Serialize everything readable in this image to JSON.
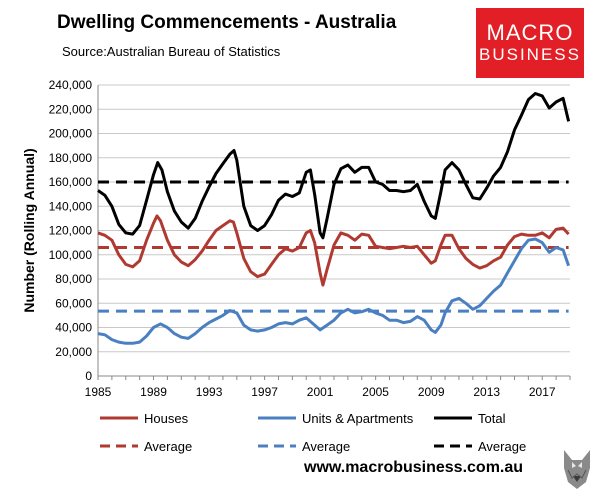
{
  "header": {
    "title": "Dwelling Commencements - Australia",
    "source": "Source:Australian Bureau of Statistics"
  },
  "logo": {
    "line1": "MACRO",
    "line2": "BUSINESS"
  },
  "footer": {
    "website": "www.macrobusiness.com.au"
  },
  "colors": {
    "houses": "#b03a32",
    "units": "#4a7fc1",
    "total": "#000000",
    "grid": "#c8c8c8",
    "logo_bg": "#e21f26"
  },
  "chart_data": {
    "type": "line",
    "title": "Dwelling Commencements - Australia",
    "xlabel": "",
    "ylabel": "Number (Rolling Annual)",
    "xlim": [
      1985,
      2019
    ],
    "ylim": [
      0,
      240000
    ],
    "grid": true,
    "x_ticks": [
      "1985",
      "1989",
      "1993",
      "1997",
      "2001",
      "2005",
      "2009",
      "2013",
      "2017"
    ],
    "y_ticks": [
      "0",
      "20,000",
      "40,000",
      "60,000",
      "80,000",
      "100,000",
      "120,000",
      "140,000",
      "160,000",
      "180,000",
      "200,000",
      "220,000",
      "240,000"
    ],
    "series": [
      {
        "name": "Houses",
        "key": "houses",
        "style": "solid",
        "points": [
          [
            1985,
            118000
          ],
          [
            1985.5,
            116000
          ],
          [
            1986,
            112000
          ],
          [
            1986.5,
            100000
          ],
          [
            1987,
            92000
          ],
          [
            1987.5,
            90000
          ],
          [
            1988,
            95000
          ],
          [
            1988.5,
            112000
          ],
          [
            1989,
            126000
          ],
          [
            1989.25,
            132000
          ],
          [
            1989.5,
            128000
          ],
          [
            1990,
            112000
          ],
          [
            1990.5,
            100000
          ],
          [
            1991,
            94000
          ],
          [
            1991.5,
            91000
          ],
          [
            1992,
            96000
          ],
          [
            1992.5,
            103000
          ],
          [
            1993,
            112000
          ],
          [
            1993.5,
            120000
          ],
          [
            1994,
            124000
          ],
          [
            1994.5,
            128000
          ],
          [
            1994.75,
            127000
          ],
          [
            1995,
            118000
          ],
          [
            1995.5,
            97000
          ],
          [
            1996,
            86000
          ],
          [
            1996.5,
            82000
          ],
          [
            1997,
            84000
          ],
          [
            1997.5,
            92000
          ],
          [
            1998,
            100000
          ],
          [
            1998.5,
            105000
          ],
          [
            1999,
            103000
          ],
          [
            1999.5,
            106000
          ],
          [
            2000,
            118000
          ],
          [
            2000.3,
            120000
          ],
          [
            2000.6,
            110000
          ],
          [
            2001,
            85000
          ],
          [
            2001.2,
            75000
          ],
          [
            2001.5,
            88000
          ],
          [
            2002,
            108000
          ],
          [
            2002.5,
            118000
          ],
          [
            2003,
            116000
          ],
          [
            2003.5,
            112000
          ],
          [
            2004,
            117000
          ],
          [
            2004.5,
            116000
          ],
          [
            2005,
            107000
          ],
          [
            2005.5,
            106000
          ],
          [
            2006,
            105000
          ],
          [
            2006.5,
            106000
          ],
          [
            2007,
            107000
          ],
          [
            2007.5,
            106000
          ],
          [
            2008,
            107000
          ],
          [
            2008.5,
            100000
          ],
          [
            2009,
            93000
          ],
          [
            2009.3,
            95000
          ],
          [
            2009.7,
            108000
          ],
          [
            2010,
            116000
          ],
          [
            2010.5,
            116000
          ],
          [
            2011,
            105000
          ],
          [
            2011.5,
            97000
          ],
          [
            2012,
            92000
          ],
          [
            2012.5,
            89000
          ],
          [
            2013,
            91000
          ],
          [
            2013.5,
            95000
          ],
          [
            2014,
            98000
          ],
          [
            2014.5,
            108000
          ],
          [
            2015,
            115000
          ],
          [
            2015.5,
            117000
          ],
          [
            2016,
            116000
          ],
          [
            2016.5,
            116000
          ],
          [
            2017,
            118000
          ],
          [
            2017.5,
            114000
          ],
          [
            2018,
            121000
          ],
          [
            2018.5,
            122000
          ],
          [
            2018.9,
            117000
          ]
        ]
      },
      {
        "name": "Units & Apartments",
        "key": "units",
        "style": "solid",
        "points": [
          [
            1985,
            35000
          ],
          [
            1985.5,
            34000
          ],
          [
            1986,
            30000
          ],
          [
            1986.5,
            28000
          ],
          [
            1987,
            27000
          ],
          [
            1987.5,
            27000
          ],
          [
            1988,
            28000
          ],
          [
            1988.5,
            33000
          ],
          [
            1989,
            40000
          ],
          [
            1989.5,
            43000
          ],
          [
            1990,
            40000
          ],
          [
            1990.5,
            35000
          ],
          [
            1991,
            32000
          ],
          [
            1991.5,
            31000
          ],
          [
            1992,
            35000
          ],
          [
            1992.5,
            40000
          ],
          [
            1993,
            44000
          ],
          [
            1993.5,
            47000
          ],
          [
            1994,
            50000
          ],
          [
            1994.5,
            54000
          ],
          [
            1995,
            52000
          ],
          [
            1995.5,
            42000
          ],
          [
            1996,
            38000
          ],
          [
            1996.5,
            37000
          ],
          [
            1997,
            38000
          ],
          [
            1997.5,
            40000
          ],
          [
            1998,
            43000
          ],
          [
            1998.5,
            44000
          ],
          [
            1999,
            43000
          ],
          [
            1999.5,
            46000
          ],
          [
            2000,
            48000
          ],
          [
            2000.5,
            43000
          ],
          [
            2001,
            38000
          ],
          [
            2001.5,
            42000
          ],
          [
            2002,
            46000
          ],
          [
            2002.5,
            52000
          ],
          [
            2003,
            55000
          ],
          [
            2003.5,
            52000
          ],
          [
            2004,
            53000
          ],
          [
            2004.5,
            55000
          ],
          [
            2005,
            52000
          ],
          [
            2005.5,
            50000
          ],
          [
            2006,
            46000
          ],
          [
            2006.5,
            46000
          ],
          [
            2007,
            44000
          ],
          [
            2007.5,
            45000
          ],
          [
            2008,
            49000
          ],
          [
            2008.5,
            46000
          ],
          [
            2009,
            38000
          ],
          [
            2009.3,
            36000
          ],
          [
            2009.7,
            42000
          ],
          [
            2010,
            52000
          ],
          [
            2010.5,
            62000
          ],
          [
            2011,
            64000
          ],
          [
            2011.5,
            60000
          ],
          [
            2012,
            55000
          ],
          [
            2012.5,
            58000
          ],
          [
            2013,
            64000
          ],
          [
            2013.5,
            70000
          ],
          [
            2014,
            75000
          ],
          [
            2014.5,
            85000
          ],
          [
            2015,
            95000
          ],
          [
            2015.5,
            105000
          ],
          [
            2016,
            112000
          ],
          [
            2016.5,
            113000
          ],
          [
            2017,
            110000
          ],
          [
            2017.5,
            102000
          ],
          [
            2018,
            106000
          ],
          [
            2018.5,
            104000
          ],
          [
            2018.9,
            91000
          ]
        ]
      },
      {
        "name": "Total",
        "key": "total",
        "style": "solid",
        "points": [
          [
            1985,
            153000
          ],
          [
            1985.5,
            149000
          ],
          [
            1986,
            140000
          ],
          [
            1986.5,
            125000
          ],
          [
            1987,
            118000
          ],
          [
            1987.5,
            117000
          ],
          [
            1988,
            124000
          ],
          [
            1988.5,
            145000
          ],
          [
            1989,
            166000
          ],
          [
            1989.3,
            176000
          ],
          [
            1989.6,
            170000
          ],
          [
            1990,
            152000
          ],
          [
            1990.5,
            136000
          ],
          [
            1991,
            127000
          ],
          [
            1991.5,
            122000
          ],
          [
            1992,
            130000
          ],
          [
            1992.5,
            144000
          ],
          [
            1993,
            156000
          ],
          [
            1993.5,
            167000
          ],
          [
            1994,
            175000
          ],
          [
            1994.5,
            183000
          ],
          [
            1994.8,
            186000
          ],
          [
            1995,
            178000
          ],
          [
            1995.5,
            140000
          ],
          [
            1996,
            124000
          ],
          [
            1996.5,
            120000
          ],
          [
            1997,
            124000
          ],
          [
            1997.5,
            133000
          ],
          [
            1998,
            145000
          ],
          [
            1998.5,
            150000
          ],
          [
            1999,
            148000
          ],
          [
            1999.5,
            151000
          ],
          [
            2000,
            168000
          ],
          [
            2000.3,
            170000
          ],
          [
            2000.6,
            150000
          ],
          [
            2001,
            118000
          ],
          [
            2001.2,
            114000
          ],
          [
            2001.5,
            130000
          ],
          [
            2002,
            158000
          ],
          [
            2002.5,
            171000
          ],
          [
            2003,
            174000
          ],
          [
            2003.5,
            168000
          ],
          [
            2004,
            172000
          ],
          [
            2004.5,
            172000
          ],
          [
            2005,
            160000
          ],
          [
            2005.5,
            158000
          ],
          [
            2006,
            153000
          ],
          [
            2006.5,
            153000
          ],
          [
            2007,
            152000
          ],
          [
            2007.5,
            153000
          ],
          [
            2008,
            158000
          ],
          [
            2008.5,
            144000
          ],
          [
            2009,
            132000
          ],
          [
            2009.3,
            130000
          ],
          [
            2009.7,
            152000
          ],
          [
            2010,
            170000
          ],
          [
            2010.5,
            176000
          ],
          [
            2011,
            170000
          ],
          [
            2011.5,
            158000
          ],
          [
            2012,
            147000
          ],
          [
            2012.5,
            146000
          ],
          [
            2013,
            155000
          ],
          [
            2013.5,
            165000
          ],
          [
            2014,
            172000
          ],
          [
            2014.5,
            185000
          ],
          [
            2015,
            203000
          ],
          [
            2015.5,
            215000
          ],
          [
            2016,
            228000
          ],
          [
            2016.5,
            233000
          ],
          [
            2017,
            231000
          ],
          [
            2017.5,
            221000
          ],
          [
            2018,
            226000
          ],
          [
            2018.5,
            229000
          ],
          [
            2018.9,
            210000
          ]
        ]
      },
      {
        "name": "Average",
        "key": "houses",
        "style": "dashed",
        "points": [
          [
            1985,
            106000
          ],
          [
            2018.9,
            106000
          ]
        ]
      },
      {
        "name": "Average",
        "key": "units",
        "style": "dashed",
        "points": [
          [
            1985,
            53500
          ],
          [
            2018.9,
            53500
          ]
        ]
      },
      {
        "name": "Average",
        "key": "total",
        "style": "dashed",
        "points": [
          [
            1985,
            160000
          ],
          [
            2018.9,
            160000
          ]
        ]
      }
    ],
    "legend": [
      {
        "label": "Houses",
        "key": "houses",
        "style": "solid"
      },
      {
        "label": "Units & Apartments",
        "key": "units",
        "style": "solid"
      },
      {
        "label": "Total",
        "key": "total",
        "style": "solid"
      },
      {
        "label": "Average",
        "key": "houses",
        "style": "dashed"
      },
      {
        "label": "Average",
        "key": "units",
        "style": "dashed"
      },
      {
        "label": "Average",
        "key": "total",
        "style": "dashed"
      }
    ]
  }
}
